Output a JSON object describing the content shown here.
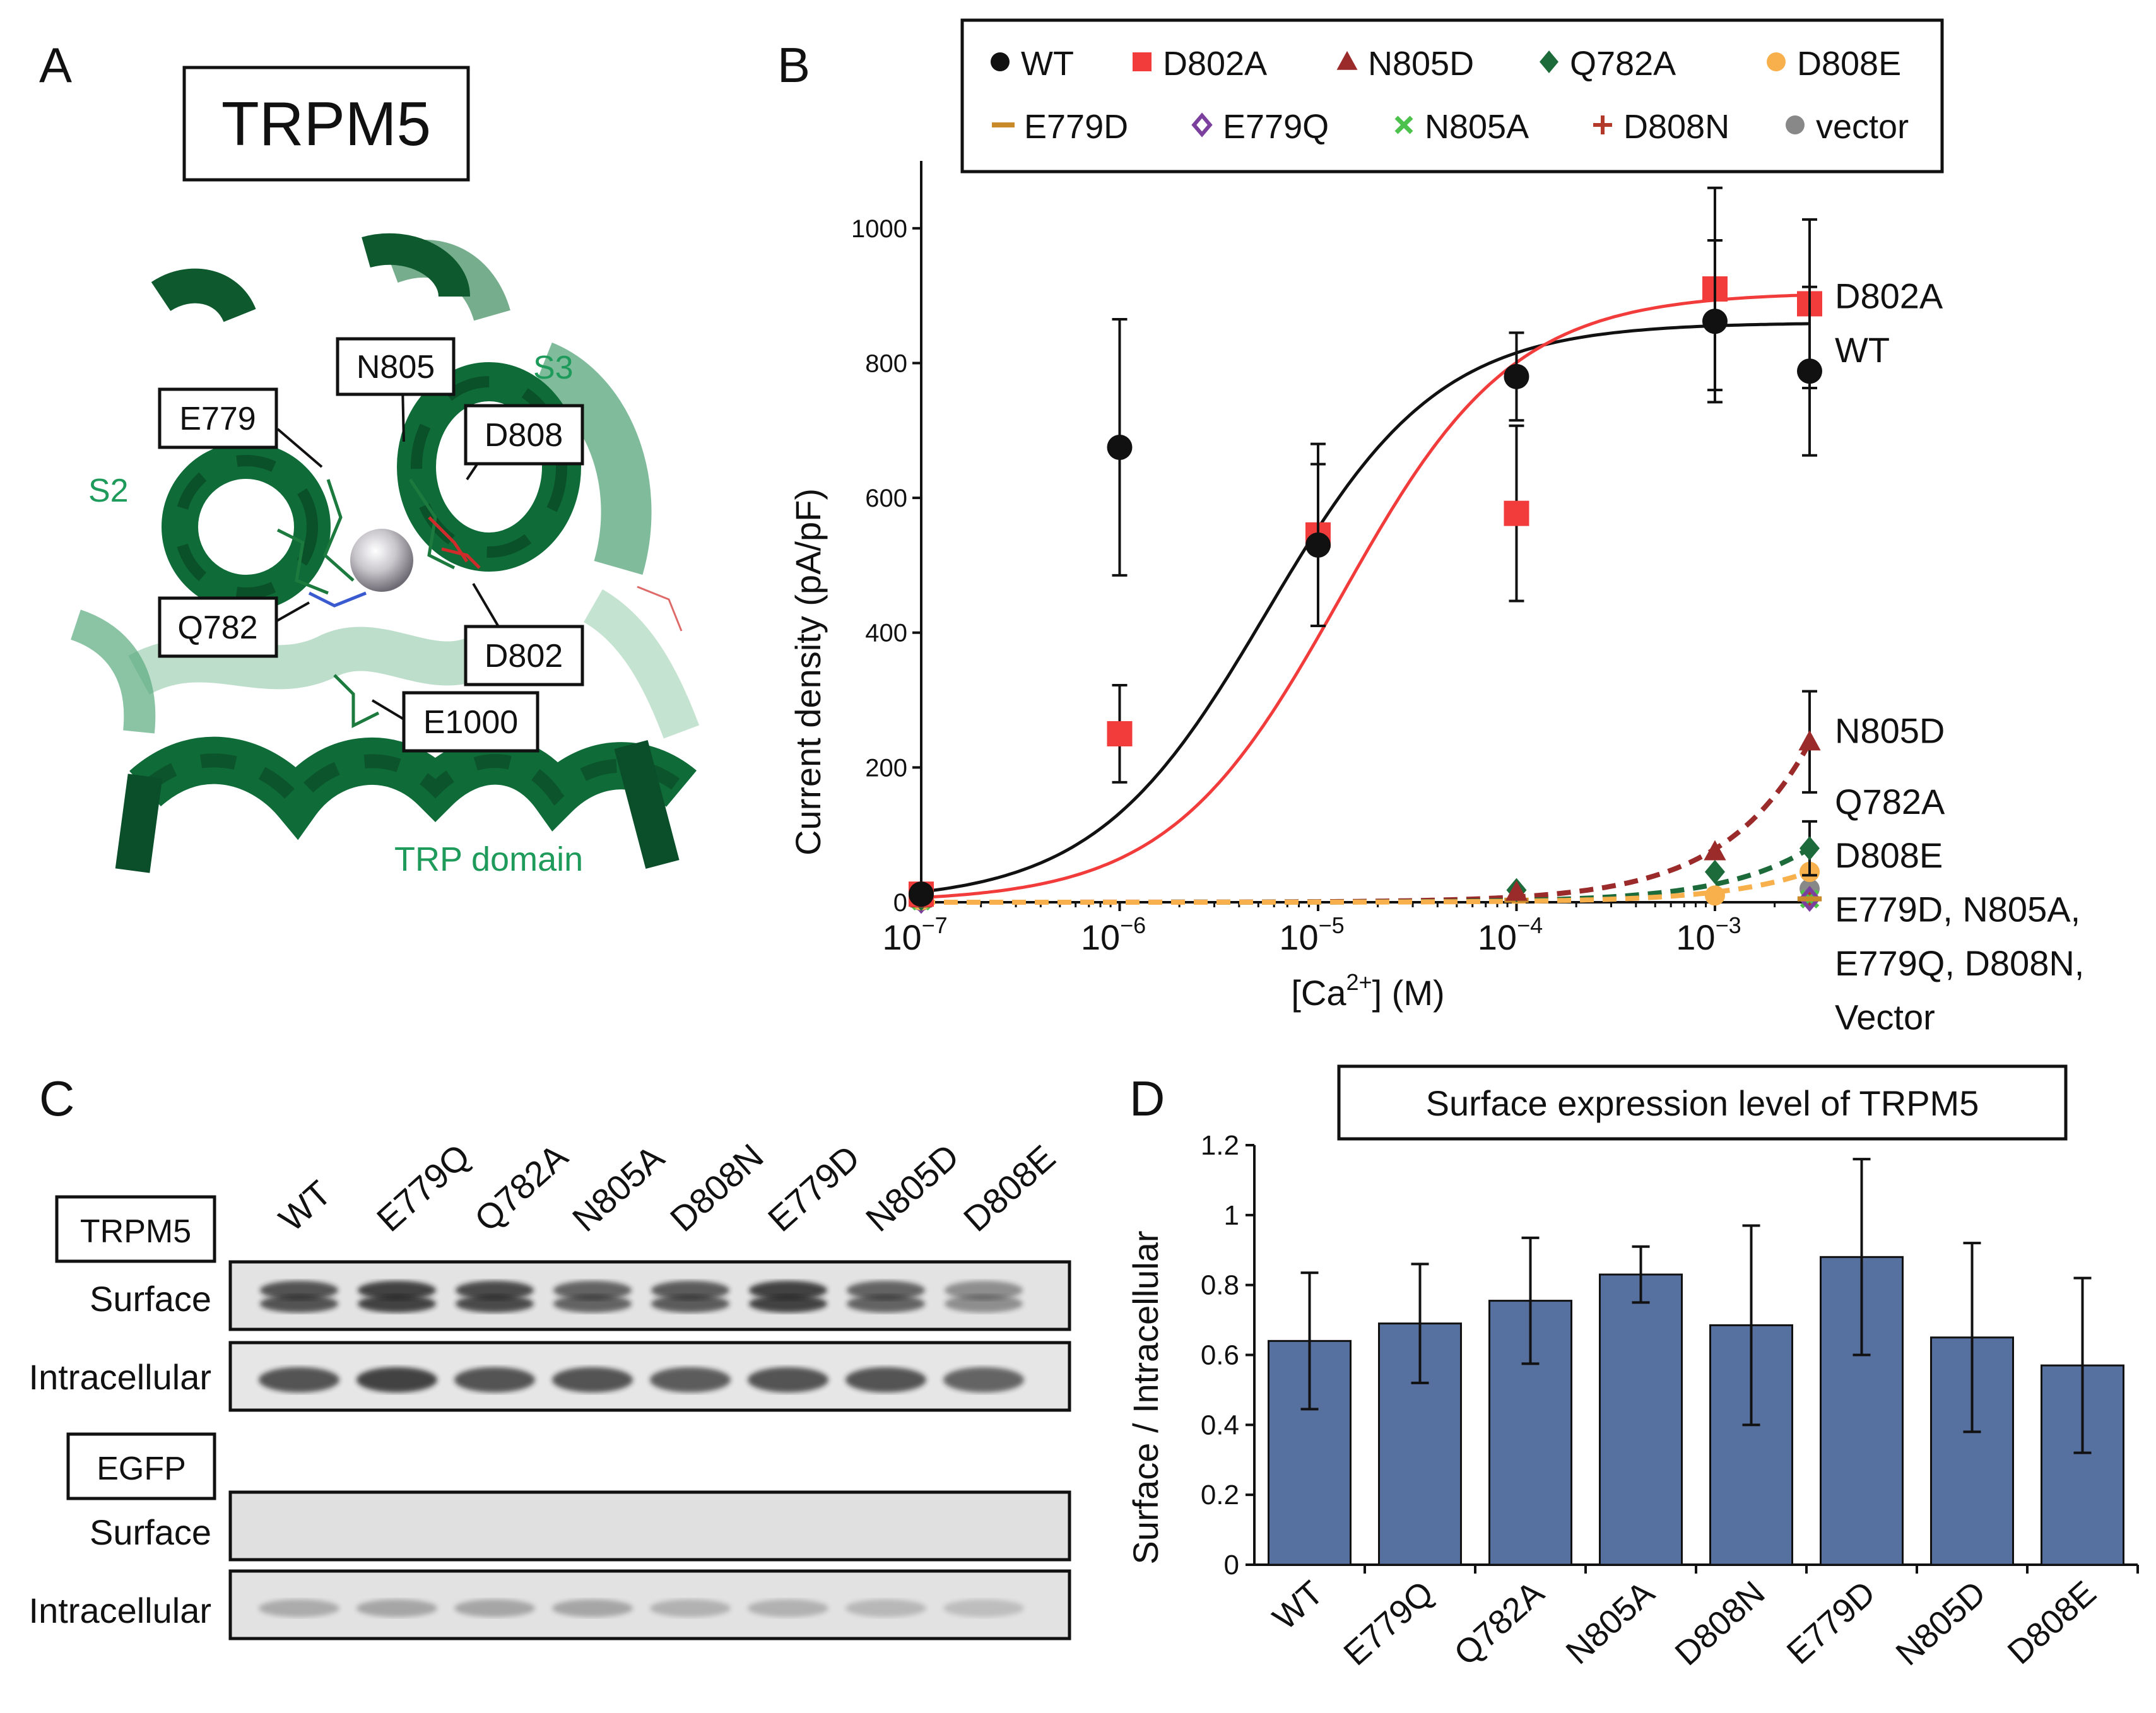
{
  "panel_labels": {
    "a": "A",
    "b": "B",
    "c": "C",
    "d": "D"
  },
  "panel_a": {
    "title": "TRPM5",
    "residues": [
      "E779",
      "N805",
      "D808",
      "Q782",
      "D802",
      "E1000"
    ],
    "helix_labels": {
      "s2": "S2",
      "s3": "S3",
      "trp": "TRP domain"
    }
  },
  "panel_c": {
    "lanes": [
      "WT",
      "E779Q",
      "Q782A",
      "N805A",
      "D808N",
      "E779D",
      "N805D",
      "D808E"
    ],
    "groups": [
      {
        "name": "TRPM5",
        "rows": [
          "Surface",
          "Intracellular"
        ]
      },
      {
        "name": "EGFP",
        "rows": [
          "Surface",
          "Intracellular"
        ]
      }
    ],
    "band_intensity": {
      "trpm5_surface": [
        0.85,
        0.95,
        0.9,
        0.75,
        0.8,
        0.95,
        0.75,
        0.5
      ],
      "trpm5_intracellular": [
        0.85,
        0.95,
        0.85,
        0.85,
        0.8,
        0.85,
        0.85,
        0.75
      ],
      "egfp_surface": [
        0,
        0,
        0,
        0,
        0,
        0,
        0,
        0
      ],
      "egfp_intracellular": [
        0.45,
        0.5,
        0.5,
        0.5,
        0.4,
        0.4,
        0.35,
        0.3
      ]
    }
  },
  "chart_data": [
    {
      "type": "scatter",
      "xlabel_base": "[Ca",
      "xlabel_sup": "2+",
      "xlabel_tail": "] (M)",
      "ylabel": "Current density (pA/pF)",
      "xscale": "log",
      "xlim": [
        1e-07,
        0.003
      ],
      "ylim": [
        0,
        1100
      ],
      "yticks": [
        0,
        200,
        400,
        600,
        800,
        1000
      ],
      "xticks": [
        {
          "value": 1e-07,
          "base": "10",
          "exp": "−7"
        },
        {
          "value": 1e-06,
          "base": "10",
          "exp": "−6"
        },
        {
          "value": 1e-05,
          "base": "10",
          "exp": "−5"
        },
        {
          "value": 0.0001,
          "base": "10",
          "exp": "−4"
        },
        {
          "value": 0.001,
          "base": "10",
          "exp": "−3"
        }
      ],
      "legend_position": "top",
      "series": [
        {
          "name": "WT",
          "marker": "circle",
          "color": "#111111",
          "x": [
            1e-07,
            1e-06,
            1e-05,
            0.0001,
            0.001,
            0.003
          ],
          "y": [
            12,
            675,
            530,
            780,
            862,
            788
          ],
          "err": [
            5,
            190,
            120,
            65,
            120,
            125
          ],
          "fit": {
            "style": "solid",
            "color": "#111111",
            "top": 860,
            "ec50": 5.5e-06,
            "hill": 1.0,
            "base": 0
          }
        },
        {
          "name": "D802A",
          "marker": "square",
          "color": "#f23b3b",
          "x": [
            1e-07,
            1e-06,
            1e-05,
            0.0001,
            0.001,
            0.003
          ],
          "y": [
            12,
            250,
            545,
            577,
            910,
            888
          ],
          "err": [
            5,
            72,
            135,
            130,
            150,
            125
          ],
          "fit": {
            "style": "solid",
            "color": "#f23b3b",
            "top": 905,
            "ec50": 1.3e-05,
            "hill": 1.0,
            "base": 0
          }
        },
        {
          "name": "N805D",
          "marker": "triangle",
          "color": "#9b2a2a",
          "x": [
            1e-07,
            0.0001,
            0.001,
            0.003
          ],
          "y": [
            5,
            15,
            75,
            238
          ],
          "err": [
            0,
            0,
            0,
            75
          ],
          "fit": {
            "style": "dashed",
            "color": "#9b2a2a",
            "k": 79000
          }
        },
        {
          "name": "Q782A",
          "marker": "diamond",
          "color": "#1d6b3a",
          "x": [
            1e-07,
            0.0001,
            0.001,
            0.003
          ],
          "y": [
            5,
            18,
            45,
            80
          ],
          "err": [
            0,
            0,
            0,
            40
          ],
          "fit": {
            "style": "dashed",
            "color": "#1d6b3a",
            "k": 26700
          }
        },
        {
          "name": "D808E",
          "marker": "circle",
          "color": "#f7b04c",
          "x": [
            1e-07,
            0.001,
            0.003
          ],
          "y": [
            3,
            10,
            45
          ],
          "err": [
            0,
            0,
            0
          ],
          "fit": {
            "style": "dashed",
            "color": "#f7b04c",
            "k": 15000
          }
        },
        {
          "name": "E779D",
          "marker": "dash",
          "color": "#c98a2a",
          "x": [
            1e-07,
            0.0001,
            0.003
          ],
          "y": [
            2,
            3,
            5
          ],
          "err": [
            0,
            0,
            0
          ]
        },
        {
          "name": "E779Q",
          "marker": "open-diamond",
          "color": "#7b3f9e",
          "x": [
            1e-07,
            0.003
          ],
          "y": [
            2,
            5
          ],
          "err": [
            0,
            0
          ]
        },
        {
          "name": "N805A",
          "marker": "x",
          "color": "#4cc24c",
          "x": [
            1e-07,
            0.003
          ],
          "y": [
            2,
            5
          ],
          "err": [
            0,
            0
          ]
        },
        {
          "name": "D808N",
          "marker": "plus",
          "color": "#b33a2a",
          "x": [
            1e-07,
            0.003
          ],
          "y": [
            2,
            5
          ],
          "err": [
            0,
            0
          ]
        },
        {
          "name": "vector",
          "marker": "circle",
          "color": "#888888",
          "x": [
            1e-07,
            0.003
          ],
          "y": [
            2,
            20
          ],
          "err": [
            0,
            0
          ]
        }
      ],
      "right_labels": [
        {
          "text": "D802A",
          "y": 900
        },
        {
          "text": "WT",
          "y": 820
        },
        {
          "text": "N805D",
          "y": 255
        },
        {
          "text": "Q782A",
          "y": 150
        },
        {
          "text": "D808E",
          "y": 70
        },
        {
          "text": "E779D, N805A,",
          "y": -10
        },
        {
          "text": "E779Q, D808N,",
          "y": -90
        },
        {
          "text": "Vector",
          "y": -170
        }
      ]
    },
    {
      "type": "bar",
      "title": "Surface expression level of TRPM5",
      "ylabel": "Surface / Intracellular",
      "categories": [
        "WT",
        "E779Q",
        "Q782A",
        "N805A",
        "D808N",
        "E779D",
        "N805D",
        "D808E"
      ],
      "values": [
        0.64,
        0.69,
        0.755,
        0.83,
        0.685,
        0.88,
        0.65,
        0.57
      ],
      "errors": [
        0.195,
        0.17,
        0.18,
        0.08,
        0.285,
        0.28,
        0.27,
        0.25
      ],
      "ylim": [
        0,
        1.2
      ],
      "yticks": [
        "0",
        "0.2",
        "0.4",
        "0.6",
        "0.8",
        "1",
        "1.2"
      ],
      "bar_color": "#56719f"
    }
  ]
}
